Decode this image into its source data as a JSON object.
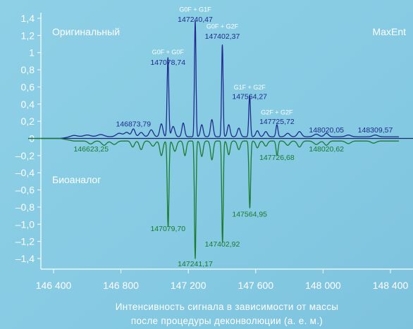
{
  "chart_data": {
    "type": "line",
    "corner_labels": {
      "left_top": "Оригинальный",
      "right_top": "MaxEnt",
      "left_bottom": "Биоаналог"
    },
    "xlabel": [
      "Интенсивность сигнала в зависимости от массы",
      "после процедуры деконволюции (а. е. м.)"
    ],
    "xlim": [
      146250,
      148450
    ],
    "ylim": [
      -1.52,
      1.45
    ],
    "x_ticks": [
      146400,
      146800,
      147200,
      147600,
      148000,
      148400
    ],
    "x_tick_labels": [
      "146 400",
      "146 800",
      "147 200",
      "147 600",
      "148 000",
      "148 400"
    ],
    "y_ticks": [
      1.4,
      1.2,
      1.0,
      0.8,
      0.6,
      0.4,
      0.2,
      0,
      -0.2,
      -0.4,
      -0.6,
      -0.8,
      -1.0,
      -1.2,
      -1.4
    ],
    "y_tick_labels": [
      "1,4",
      "1,2",
      "1",
      "0,8",
      "0,6",
      "0,4",
      "0,2",
      "0",
      "–0,2",
      "–0,4",
      "–0,6",
      "–0,8",
      "–1,0",
      "–1,2",
      "–1,4"
    ],
    "series": [
      {
        "color": "#1f2a8c",
        "baseline": 0.02,
        "peaks": [
          [
            146520,
            0.015,
            22
          ],
          [
            146600,
            0.02,
            20
          ],
          [
            146680,
            0.025,
            20
          ],
          [
            146790,
            0.04,
            18
          ],
          [
            146835,
            0.05,
            14
          ],
          [
            146874,
            0.09,
            10
          ],
          [
            146920,
            0.05,
            12
          ],
          [
            146980,
            0.08,
            12
          ],
          [
            147040,
            0.15,
            9
          ],
          [
            147079,
            0.92,
            5
          ],
          [
            147110,
            0.12,
            10
          ],
          [
            147170,
            0.16,
            8
          ],
          [
            147241,
            1.35,
            4.5
          ],
          [
            147280,
            0.14,
            8
          ],
          [
            147340,
            0.2,
            8
          ],
          [
            147402,
            1.07,
            4.5
          ],
          [
            147440,
            0.14,
            8
          ],
          [
            147500,
            0.1,
            9
          ],
          [
            147564,
            0.48,
            5
          ],
          [
            147610,
            0.07,
            9
          ],
          [
            147660,
            0.06,
            10
          ],
          [
            147726,
            0.14,
            6
          ],
          [
            147790,
            0.04,
            12
          ],
          [
            147860,
            0.06,
            12
          ],
          [
            147960,
            0.03,
            15
          ],
          [
            148020,
            0.04,
            12
          ],
          [
            148150,
            0.02,
            15
          ],
          [
            148310,
            0.02,
            15
          ]
        ]
      },
      {
        "color": "#1a7a2e",
        "baseline": -0.03,
        "peaks": [
          [
            146620,
            -0.035,
            14
          ],
          [
            146700,
            -0.05,
            14
          ],
          [
            146760,
            -0.04,
            15
          ],
          [
            146870,
            -0.07,
            10
          ],
          [
            146920,
            -0.1,
            10
          ],
          [
            146990,
            -0.06,
            12
          ],
          [
            147040,
            -0.17,
            9
          ],
          [
            147080,
            -1.0,
            5
          ],
          [
            147120,
            -0.12,
            10
          ],
          [
            147180,
            -0.17,
            8
          ],
          [
            147241,
            -1.37,
            4.5
          ],
          [
            147280,
            -0.18,
            8
          ],
          [
            147340,
            -0.22,
            8
          ],
          [
            147403,
            -1.18,
            4.5
          ],
          [
            147440,
            -0.16,
            8
          ],
          [
            147500,
            -0.1,
            9
          ],
          [
            147565,
            -0.78,
            5
          ],
          [
            147610,
            -0.08,
            9
          ],
          [
            147660,
            -0.06,
            10
          ],
          [
            147727,
            -0.17,
            6
          ],
          [
            147790,
            -0.05,
            12
          ],
          [
            147860,
            -0.07,
            12
          ],
          [
            147960,
            -0.04,
            15
          ],
          [
            148020,
            -0.05,
            12
          ],
          [
            148150,
            -0.03,
            15
          ],
          [
            148300,
            -0.025,
            15
          ]
        ]
      }
    ],
    "annotations": [
      {
        "text": "G0F + G1F",
        "x": 147241,
        "y": 1.48,
        "color": "#ffffff",
        "size": "small"
      },
      {
        "text": "147240,47",
        "x": 147241,
        "y": 1.36,
        "color": "#1f2a8c"
      },
      {
        "text": "G0F + G2F",
        "x": 147402,
        "y": 1.28,
        "color": "#ffffff",
        "size": "small"
      },
      {
        "text": "147402,37",
        "x": 147402,
        "y": 1.16,
        "color": "#1f2a8c"
      },
      {
        "text": "G0F + G0F",
        "x": 147079,
        "y": 0.98,
        "color": "#ffffff",
        "size": "small"
      },
      {
        "text": "147078,74",
        "x": 147079,
        "y": 0.86,
        "color": "#1f2a8c"
      },
      {
        "text": "G1F + G2F",
        "x": 147564,
        "y": 0.57,
        "color": "#ffffff",
        "size": "small"
      },
      {
        "text": "147564,27",
        "x": 147564,
        "y": 0.46,
        "color": "#1f2a8c"
      },
      {
        "text": "G2F + G2F",
        "x": 147726,
        "y": 0.28,
        "color": "#ffffff",
        "size": "small"
      },
      {
        "text": "147725,72",
        "x": 147726,
        "y": 0.17,
        "color": "#1f2a8c"
      },
      {
        "text": "146873,79",
        "x": 146874,
        "y": 0.14,
        "color": "#1f2a8c"
      },
      {
        "text": "148020,05",
        "x": 148020,
        "y": 0.07,
        "color": "#1f2a8c"
      },
      {
        "text": "148309,57",
        "x": 148310,
        "y": 0.07,
        "color": "#1f2a8c"
      },
      {
        "text": "146623,25",
        "x": 146623,
        "y": -0.15,
        "color": "#1a7a2e"
      },
      {
        "text": "147726,68",
        "x": 147726,
        "y": -0.25,
        "color": "#1a7a2e"
      },
      {
        "text": "148020,62",
        "x": 148020,
        "y": -0.15,
        "color": "#1a7a2e"
      },
      {
        "text": "147564,95",
        "x": 147564,
        "y": -0.91,
        "color": "#1a7a2e"
      },
      {
        "text": "147079,70",
        "x": 147079,
        "y": -1.08,
        "color": "#1a7a2e"
      },
      {
        "text": "147402,92",
        "x": 147402,
        "y": -1.26,
        "color": "#1a7a2e"
      },
      {
        "text": "147241,17",
        "x": 147241,
        "y": -1.49,
        "color": "#1a7a2e"
      }
    ]
  }
}
